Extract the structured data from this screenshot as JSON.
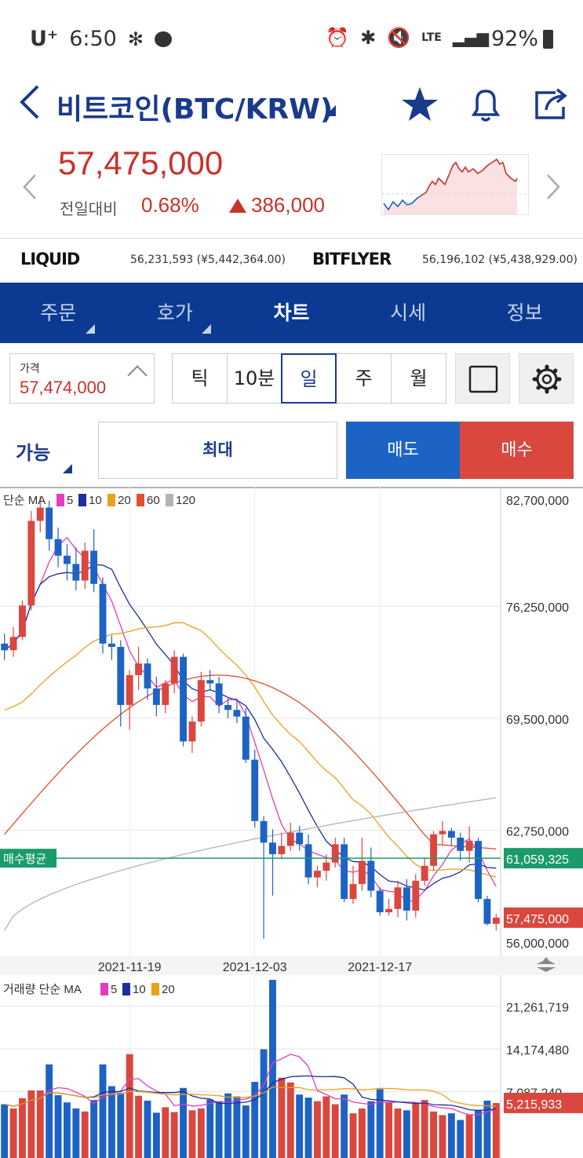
{
  "status_bar": {
    "carrier": "U⁺",
    "time": "6:50",
    "network": "LTE",
    "battery": "92%"
  },
  "header": {
    "title": "비트코인(BTC/KRW)",
    "icons": [
      "back-icon",
      "star-icon",
      "bell-icon",
      "share-icon"
    ]
  },
  "price": {
    "current": "57,475,000",
    "diff_label": "전일대비",
    "diff_pct": "0.68%",
    "diff_amount": "386,000",
    "color_up": "#c8322b"
  },
  "exchanges": [
    {
      "name": "LIQUID",
      "value": "56,231,593 (¥5,442,364.00)"
    },
    {
      "name": "BITFLYER",
      "value": "56,196,102 (¥5,438,929.00)"
    }
  ],
  "tabs": [
    {
      "label": "주문",
      "marker": true
    },
    {
      "label": "호가",
      "marker": true
    },
    {
      "label": "차트",
      "active": true
    },
    {
      "label": "시세"
    },
    {
      "label": "정보"
    }
  ],
  "toolbar": {
    "price_label": "가격",
    "price_value": "57,474,000",
    "periods": [
      "틱",
      "10분",
      "일",
      "주",
      "월"
    ],
    "active_period": "일"
  },
  "order": {
    "possible": "가능",
    "max": "최대",
    "sell": "매도",
    "buy": "매수"
  },
  "chart_data": [
    {
      "type": "candlestick",
      "legend_prefix": "단순 MA",
      "ma_series": [
        {
          "name": "5",
          "color": "#e23cc0"
        },
        {
          "name": "10",
          "color": "#1b2fa0"
        },
        {
          "name": "20",
          "color": "#e8a21a"
        },
        {
          "name": "60",
          "color": "#e0502a"
        },
        {
          "name": "120",
          "color": "#b3b3b3"
        }
      ],
      "y_ticks": [
        "82,700,000",
        "76,250,000",
        "69,500,000",
        "62,750,000",
        "56,000,000"
      ],
      "ylim": [
        56000000,
        82700000
      ],
      "x_ticks": [
        "2021-11-19",
        "2021-12-03",
        "2021-12-17"
      ],
      "avg_buy_label": "매수평균",
      "avg_buy_value": "61,059,325",
      "current_value": "57,475,000",
      "ohlc": [
        [
          74000000,
          74600000,
          73000000,
          73600000
        ],
        [
          73600000,
          75000000,
          73200000,
          74400000
        ],
        [
          74400000,
          76600000,
          74200000,
          76300000
        ],
        [
          76300000,
          82000000,
          76000000,
          81400000
        ],
        [
          81400000,
          82900000,
          80700000,
          82200000
        ],
        [
          82200000,
          82600000,
          79600000,
          80300000
        ],
        [
          80300000,
          81000000,
          78600000,
          79300000
        ],
        [
          79300000,
          80000000,
          77800000,
          78800000
        ],
        [
          78800000,
          79800000,
          77200000,
          77800000
        ],
        [
          77800000,
          80100000,
          77300000,
          79600000
        ],
        [
          79600000,
          80900000,
          77100000,
          77600000
        ],
        [
          77600000,
          78000000,
          73400000,
          74000000
        ],
        [
          74000000,
          74500000,
          73000000,
          73800000
        ],
        [
          73800000,
          74200000,
          69000000,
          70300000
        ],
        [
          70300000,
          72400000,
          68800000,
          72100000
        ],
        [
          72100000,
          73800000,
          71200000,
          72800000
        ],
        [
          72800000,
          73100000,
          70600000,
          71300000
        ],
        [
          71300000,
          72000000,
          69600000,
          70300000
        ],
        [
          70300000,
          71800000,
          69800000,
          71600000
        ],
        [
          71600000,
          73600000,
          71000000,
          73200000
        ],
        [
          73200000,
          73400000,
          67800000,
          68100000
        ],
        [
          68100000,
          69600000,
          67400000,
          69300000
        ],
        [
          69300000,
          72300000,
          69000000,
          71800000
        ],
        [
          71800000,
          72400000,
          71200000,
          71600000
        ],
        [
          71600000,
          72000000,
          69800000,
          70300000
        ],
        [
          70300000,
          70700000,
          69500000,
          70000000
        ],
        [
          70000000,
          70600000,
          69200000,
          69600000
        ],
        [
          69600000,
          70100000,
          66800000,
          67000000
        ],
        [
          67000000,
          67600000,
          62900000,
          63300000
        ],
        [
          63300000,
          63600000,
          56200000,
          62000000
        ],
        [
          62000000,
          62800000,
          58800000,
          61300000
        ],
        [
          61300000,
          62600000,
          61000000,
          61800000
        ],
        [
          61800000,
          63200000,
          61500000,
          62600000
        ],
        [
          62600000,
          63000000,
          61500000,
          61900000
        ],
        [
          61900000,
          62500000,
          59500000,
          59900000
        ],
        [
          59900000,
          60600000,
          59300000,
          60300000
        ],
        [
          60300000,
          61300000,
          59700000,
          60800000
        ],
        [
          60800000,
          62300000,
          60500000,
          61900000
        ],
        [
          61900000,
          62300000,
          58400000,
          58600000
        ],
        [
          58600000,
          60600000,
          58300000,
          59500000
        ],
        [
          59500000,
          62300000,
          59100000,
          60900000
        ],
        [
          60900000,
          61700000,
          58700000,
          59100000
        ],
        [
          59100000,
          59300000,
          57600000,
          57800000
        ],
        [
          57800000,
          58600000,
          57600000,
          58000000
        ],
        [
          58000000,
          59700000,
          57500000,
          59300000
        ],
        [
          59300000,
          59800000,
          57300000,
          57900000
        ],
        [
          57900000,
          60100000,
          57500000,
          59700000
        ],
        [
          59700000,
          61100000,
          59400000,
          60600000
        ],
        [
          60600000,
          62700000,
          60300000,
          62500000
        ],
        [
          62500000,
          63300000,
          61900000,
          62700000
        ],
        [
          62700000,
          62900000,
          61800000,
          62300000
        ],
        [
          62300000,
          62600000,
          60900000,
          61500000
        ],
        [
          61500000,
          63000000,
          60800000,
          62100000
        ],
        [
          62100000,
          62300000,
          58400000,
          58600000
        ],
        [
          58600000,
          58800000,
          57000000,
          57100000
        ],
        [
          57100000,
          57700000,
          56700000,
          57475000
        ]
      ]
    },
    {
      "type": "bar",
      "legend_prefix": "거래량 단순 MA",
      "ma_series": [
        {
          "name": "5",
          "color": "#e23cc0"
        },
        {
          "name": "10",
          "color": "#1b2fa0"
        },
        {
          "name": "20",
          "color": "#e8a21a"
        }
      ],
      "y_ticks": [
        "21,261,719",
        "14,174,480",
        "7,087,240"
      ],
      "ylim": [
        0,
        26000000
      ],
      "current_value": "5,215,933",
      "values": [
        5000000,
        4300000,
        6000000,
        7300000,
        7300000,
        11600000,
        6500000,
        5300000,
        4300000,
        3800000,
        5700000,
        11600000,
        8000000,
        6900000,
        13300000,
        6400000,
        5600000,
        3600000,
        4500000,
        3700000,
        7700000,
        4000000,
        4300000,
        5800000,
        5500000,
        6800000,
        6300000,
        4800000,
        8700000,
        14100000,
        25600000,
        9400000,
        8600000,
        6600000,
        6100000,
        5500000,
        6300000,
        5000000,
        6600000,
        3500000,
        4300000,
        5500000,
        7500000,
        5400000,
        4300000,
        4000000,
        5300000,
        5700000,
        3800000,
        3200000,
        3500000,
        2400000,
        3300000,
        4100000,
        5600000,
        5200000
      ]
    }
  ]
}
